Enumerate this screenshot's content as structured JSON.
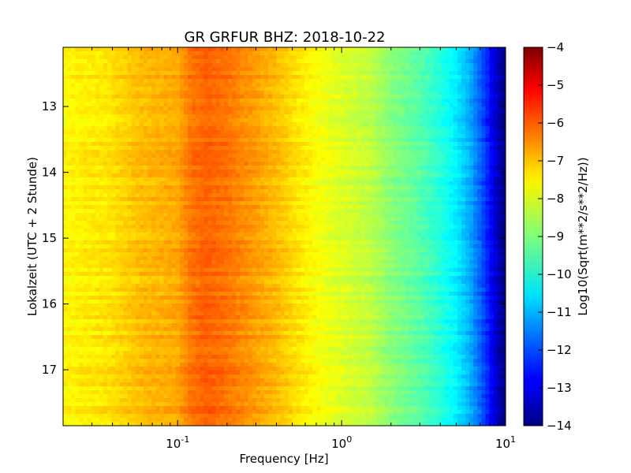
{
  "chart_data": {
    "type": "heatmap",
    "title": "GR GRFUR BHZ: 2018-10-22",
    "xlabel": "Frequency [Hz]",
    "ylabel": "Lokalzeit (UTC + 2 Stunde)",
    "x_scale": "log",
    "xlim": [
      0.02,
      10
    ],
    "x_ticks": [
      {
        "value": 0.1,
        "base": "10",
        "exp": "-1"
      },
      {
        "value": 1,
        "base": "10",
        "exp": "0"
      },
      {
        "value": 10,
        "base": "10",
        "exp": "1"
      }
    ],
    "ylim": [
      12.1,
      17.85
    ],
    "y_inverted": true,
    "y_ticks": [
      13,
      14,
      15,
      16,
      17
    ],
    "colormap": "jet",
    "colorbar": {
      "label": "Log10(Sqrt(m**2/s**2/Hz))",
      "range": [
        -14,
        -4
      ],
      "ticks": [
        -4,
        -5,
        -6,
        -7,
        -8,
        -9,
        -10,
        -11,
        -12,
        -13,
        -14
      ]
    },
    "spectrum_profile": {
      "frequency_hz": [
        0.02,
        0.038,
        0.06,
        0.08,
        0.1,
        0.12,
        0.15,
        0.2,
        0.3,
        0.4,
        0.5,
        0.7,
        1.0,
        1.5,
        2.0,
        3.0,
        4.0,
        5.0,
        6.0,
        7.0,
        8.0,
        9.0,
        10.0
      ],
      "level_log10": [
        -7.7,
        -7.5,
        -7.1,
        -7.0,
        -6.9,
        -6.4,
        -6.2,
        -6.4,
        -6.8,
        -7.1,
        -7.4,
        -7.8,
        -8.1,
        -8.4,
        -8.9,
        -9.4,
        -9.9,
        -10.4,
        -11.0,
        -11.8,
        -12.6,
        -13.5,
        -14.0
      ]
    }
  }
}
